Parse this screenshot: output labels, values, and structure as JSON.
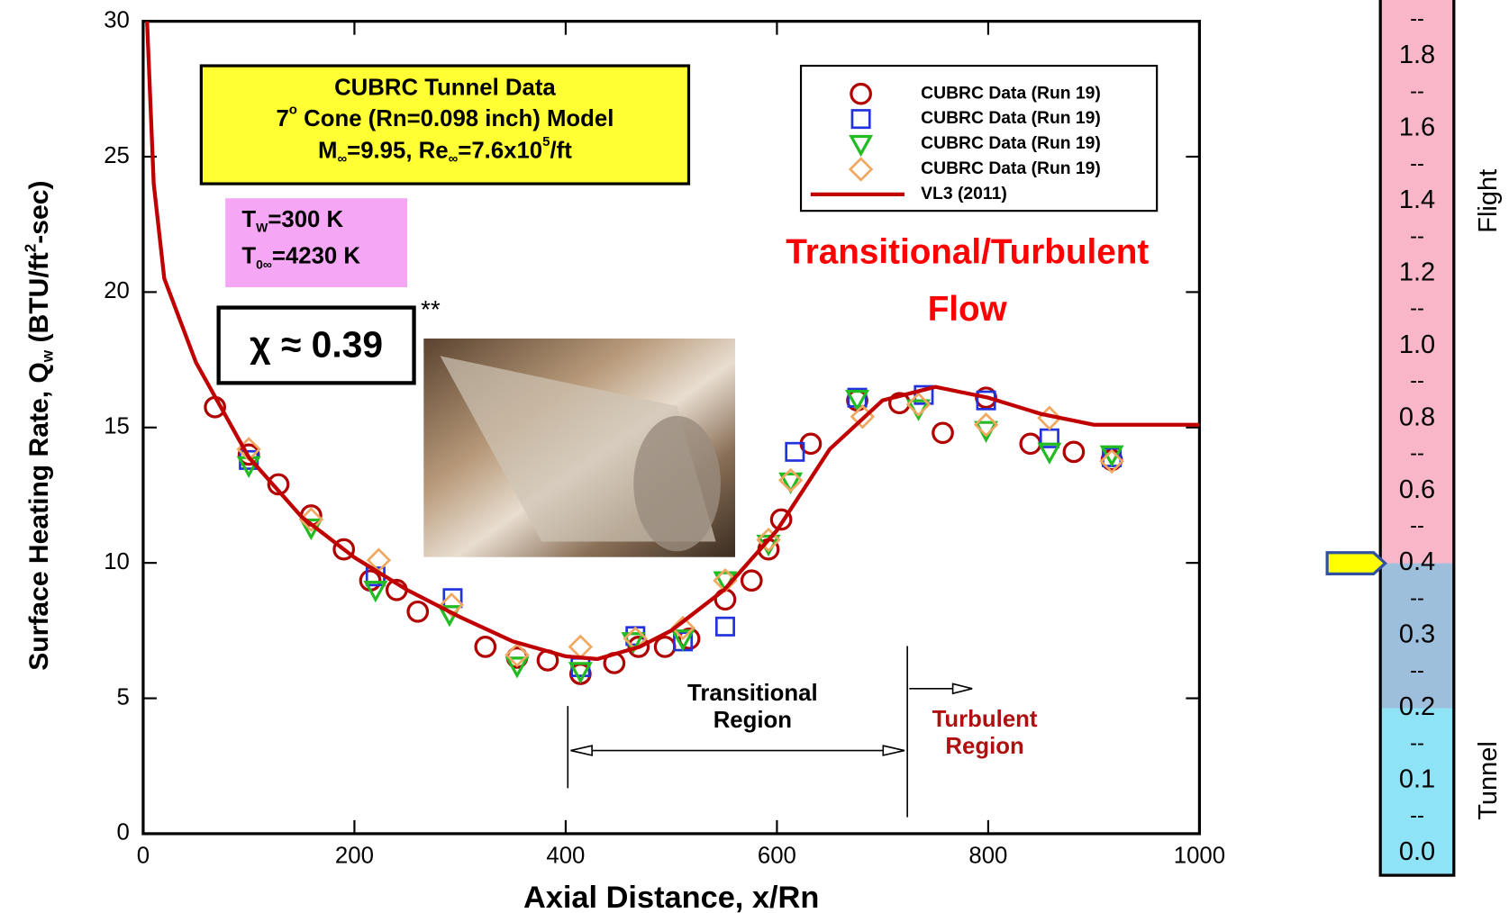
{
  "chart_data": [
    {
      "type": "scatter",
      "xlabel": "Axial Distance, x/Rn",
      "ylabel_parts": [
        "Surface Heating Rate, Q",
        "w",
        "  (BTU/ft",
        "2",
        "-sec)"
      ],
      "xlim": [
        0,
        1000
      ],
      "xticks": [
        0,
        200,
        400,
        600,
        800,
        1000
      ],
      "ylim": [
        0,
        30
      ],
      "yticks": [
        0,
        5,
        10,
        15,
        20,
        25,
        30
      ],
      "legend": "upper right",
      "series": [
        {
          "name": "CUBRC Data (Run 19)",
          "marker": "circle",
          "color": "#b00000",
          "x": [
            68,
            100,
            128,
            159,
            190,
            215,
            240,
            260,
            324,
            354,
            383,
            414,
            446,
            469,
            494,
            517,
            551,
            576,
            592,
            604,
            632,
            676,
            716,
            757,
            798,
            840,
            881,
            917
          ],
          "values": [
            15.75,
            14.0,
            12.9,
            11.75,
            10.5,
            9.35,
            9.0,
            8.2,
            6.9,
            6.5,
            6.4,
            5.9,
            6.3,
            6.9,
            6.9,
            7.2,
            8.65,
            9.35,
            10.5,
            11.6,
            14.4,
            16.0,
            15.9,
            14.8,
            16.1,
            14.4,
            14.1,
            13.8
          ]
        },
        {
          "name": "CUBRC Data (Run 19)",
          "marker": "square",
          "color": "#2233dd",
          "x": [
            100,
            220,
            293,
            414,
            466,
            511,
            551,
            617,
            676,
            739,
            798,
            858,
            917
          ],
          "values": [
            13.8,
            9.5,
            8.7,
            6.15,
            7.3,
            7.1,
            7.65,
            14.1,
            16.1,
            16.2,
            16.0,
            14.6,
            13.9
          ]
        },
        {
          "name": "CUBRC Data (Run 19)",
          "marker": "triangle",
          "color": "#22bb22",
          "x": [
            100,
            159,
            220,
            290,
            354,
            414,
            464,
            511,
            551,
            592,
            613,
            676,
            734,
            798,
            858,
            917
          ],
          "values": [
            13.6,
            11.3,
            9.0,
            8.1,
            6.2,
            6.0,
            7.1,
            7.2,
            9.35,
            10.7,
            13.0,
            16.05,
            15.7,
            14.9,
            14.1,
            14.0
          ]
        },
        {
          "name": "CUBRC Data (Run 19)",
          "marker": "diamond",
          "color": "#f0a860",
          "x": [
            100,
            159,
            223,
            292,
            354,
            414,
            466,
            511,
            551,
            592,
            613,
            681,
            734,
            798,
            858,
            917
          ],
          "values": [
            14.2,
            11.6,
            10.1,
            8.45,
            6.6,
            6.9,
            7.2,
            7.6,
            9.35,
            10.85,
            13.05,
            15.4,
            15.85,
            15.1,
            15.35,
            13.75
          ]
        },
        {
          "name": "VL3 (2011)",
          "marker": "line",
          "color": "#c00000",
          "x": [
            3.7,
            10,
            20,
            50,
            100,
            150,
            200,
            250,
            300,
            350,
            400,
            430,
            470,
            500,
            550,
            600,
            650,
            700,
            750,
            800,
            850,
            900,
            950,
            1000
          ],
          "values": [
            30,
            24,
            20.5,
            17.4,
            13.9,
            11.7,
            10.2,
            9.0,
            8.0,
            7.1,
            6.55,
            6.45,
            6.9,
            7.5,
            9.0,
            11.2,
            14.2,
            16.0,
            16.5,
            16.1,
            15.5,
            15.1,
            15.1,
            15.1
          ]
        }
      ],
      "info_box": {
        "line1": "CUBRC Tunnel Data",
        "line2_parts": [
          "7",
          "o",
          " Cone (Rn=0.098 inch) Model"
        ],
        "line3_parts": [
          "M",
          "∞",
          "=9.95, Re",
          "∞",
          "=7.6x10",
          "5",
          "/ft"
        ]
      },
      "temps": [
        [
          "T",
          "W",
          "=300 K"
        ],
        [
          "T",
          "0∞",
          "=4230 K"
        ]
      ],
      "chi": "χ ≈ 0.39",
      "chi_note": "**",
      "flow_label": [
        "Transitional/Turbulent",
        "Flow"
      ],
      "transitional_label": [
        "Transitional",
        "Region"
      ],
      "turbulent_label": [
        "Turbulent",
        "Region"
      ]
    },
    {
      "type": "colorbar",
      "ticks": [
        {
          "value": 0,
          "label": "0.0"
        },
        0.1,
        0.2,
        0.3,
        0.4,
        0.6,
        0.8,
        {
          "value": 1,
          "label": "1.0"
        },
        1.2,
        1.4,
        1.6,
        1.8
      ],
      "separator": "--",
      "bands": [
        {
          "from": 0.4,
          "color": "#f8b6c8"
        },
        {
          "from": 0.2,
          "to": 0.4,
          "color": "#9dbfdc"
        },
        {
          "to": 0.2,
          "color": "#8fe3f6"
        }
      ],
      "region_labels": [
        {
          "name": "Flight",
          "at": 1.4
        },
        {
          "name": "Tunnel",
          "at": 0.1
        }
      ],
      "marker": 0.4,
      "marker_color": "#ffff00"
    }
  ]
}
